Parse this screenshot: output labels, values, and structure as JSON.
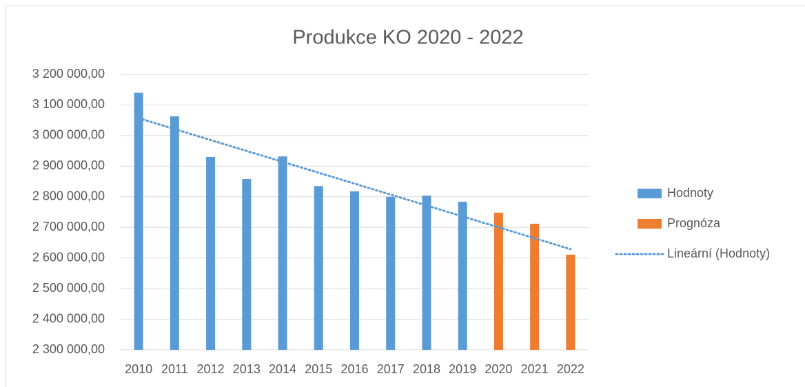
{
  "chart_data": {
    "type": "bar",
    "title": "Produkce KO 2020 - 2022",
    "categories": [
      "2010",
      "2011",
      "2012",
      "2013",
      "2014",
      "2015",
      "2016",
      "2017",
      "2018",
      "2019",
      "2020",
      "2021",
      "2022"
    ],
    "series": [
      {
        "name": "Hodnoty",
        "color": "#5b9bd5",
        "values": [
          3140000,
          3063000,
          2930000,
          2858000,
          2932000,
          2835000,
          2818000,
          2800000,
          2804000,
          2784000,
          null,
          null,
          null
        ]
      },
      {
        "name": "Prognóza",
        "color": "#ed7d31",
        "values": [
          null,
          null,
          null,
          null,
          null,
          null,
          null,
          null,
          null,
          null,
          2748000,
          2712000,
          2611000
        ]
      }
    ],
    "trendline": {
      "name": "Lineární (Hodnoty)",
      "series": 0,
      "kind": "linear",
      "color": "#5b9bd5"
    },
    "ylim": [
      2300000,
      3200000
    ],
    "yticks": [
      {
        "value": 2300000,
        "label": "2 300 000,00"
      },
      {
        "value": 2400000,
        "label": "2 400 000,00"
      },
      {
        "value": 2500000,
        "label": "2 500 000,00"
      },
      {
        "value": 2600000,
        "label": "2 600 000,00"
      },
      {
        "value": 2700000,
        "label": "2 700 000,00"
      },
      {
        "value": 2800000,
        "label": "2 800 000,00"
      },
      {
        "value": 2900000,
        "label": "2 900 000,00"
      },
      {
        "value": 3000000,
        "label": "3 000 000,00"
      },
      {
        "value": 3100000,
        "label": "3 100 000,00"
      },
      {
        "value": 3200000,
        "label": "3 200 000,00"
      }
    ],
    "grid": true,
    "legend": "right"
  }
}
